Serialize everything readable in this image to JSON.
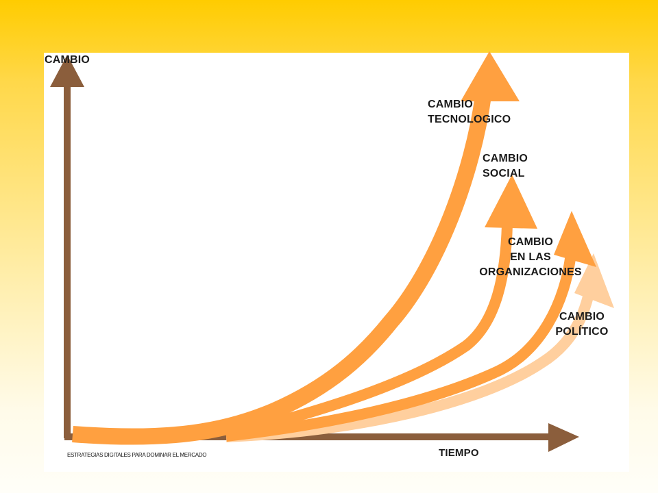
{
  "axes": {
    "y_label": "CAMBIO",
    "x_label": "TIEMPO"
  },
  "curves": [
    {
      "label_line1": "CAMBIO",
      "label_line2": "TECNOLOGICO",
      "color": "#ffa040"
    },
    {
      "label_line1": "CAMBIO",
      "label_line2": "SOCIAL",
      "color": "#ffa040"
    },
    {
      "label_line1": "CAMBIO",
      "label_line2": "EN LAS",
      "label_line3": "ORGANIZACIONES",
      "color": "#ffa040"
    },
    {
      "label_line1": "CAMBIO",
      "label_line2": "POLÍTICO",
      "color": "#ffcf9e"
    }
  ],
  "footer": "ESTRATEGIAS DIGITALES PARA DOMINAR EL MERCADO",
  "colors": {
    "axis": "#8b5e3c",
    "arrow_main": "#ffa040",
    "arrow_light": "#ffcf9e",
    "background_top": "#ffcc00",
    "panel": "#ffffff"
  }
}
